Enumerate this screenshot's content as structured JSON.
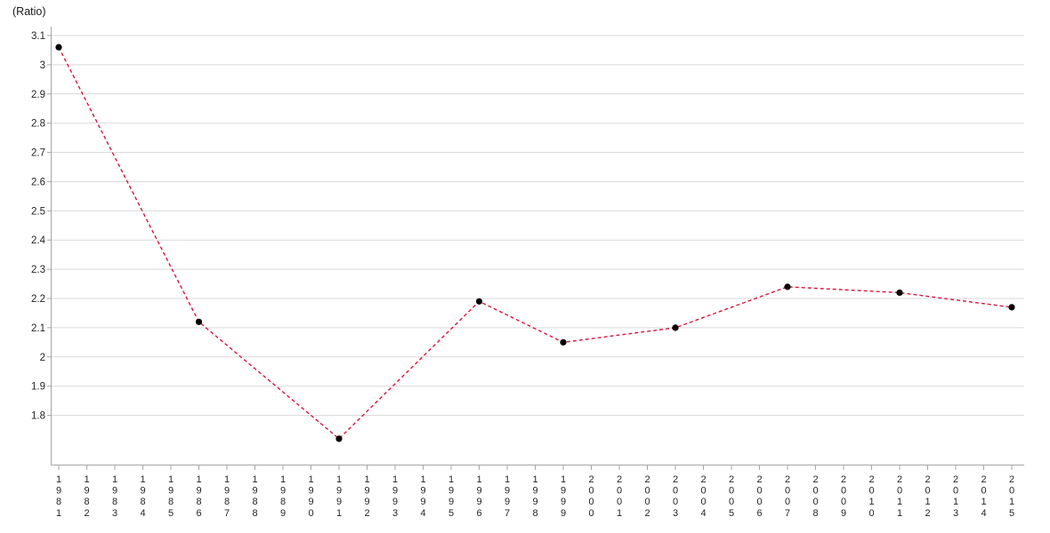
{
  "chart": {
    "unit_label": "(Ratio)",
    "colors": {
      "line": "#dc143c",
      "marker": "#000000",
      "gridline": "#d9d9d9",
      "axis": "#a6a6a6",
      "tick_text": "#262626"
    }
  },
  "chart_data": {
    "type": "line",
    "title": "",
    "xlabel": "",
    "ylabel": "(Ratio)",
    "legend": "none",
    "grid": "horizontal",
    "line_style": "dashed",
    "marker_style": "filled-circle",
    "ylim": [
      1.63,
      3.1
    ],
    "y_ticks": [
      3.1,
      3,
      2.9,
      2.8,
      2.7,
      2.6,
      2.5,
      2.4,
      2.3,
      2.2,
      2.1,
      2,
      1.9,
      1.8
    ],
    "x_categories": [
      1981,
      1982,
      1983,
      1984,
      1985,
      1986,
      1987,
      1988,
      1989,
      1990,
      1991,
      1992,
      1993,
      1994,
      1995,
      1996,
      1997,
      1998,
      1999,
      2000,
      2001,
      2002,
      2003,
      2004,
      2005,
      2006,
      2007,
      2008,
      2009,
      2010,
      2011,
      2012,
      2013,
      2014,
      2015
    ],
    "points": [
      {
        "year": 1981,
        "value": 3.06
      },
      {
        "year": 1986,
        "value": 2.12
      },
      {
        "year": 1991,
        "value": 1.72
      },
      {
        "year": 1996,
        "value": 2.19
      },
      {
        "year": 1999,
        "value": 2.05
      },
      {
        "year": 2003,
        "value": 2.1
      },
      {
        "year": 2007,
        "value": 2.24
      },
      {
        "year": 2011,
        "value": 2.22
      },
      {
        "year": 2015,
        "value": 2.17
      }
    ]
  }
}
